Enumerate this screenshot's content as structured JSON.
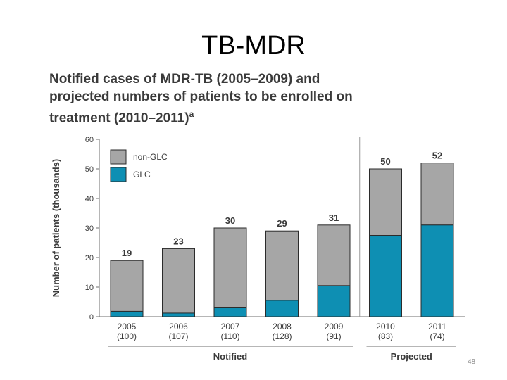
{
  "slide": {
    "title": "TB-MDR",
    "page_number": "48"
  },
  "chart_data": {
    "type": "bar",
    "title_lines": [
      "Notified cases of MDR-TB (2005–2009) and",
      "projected numbers of patients to be enrolled on",
      "treatment (2010–2011)"
    ],
    "title_superscript": "a",
    "ylabel": "Number of patients (thousands)",
    "ylim": [
      0,
      60
    ],
    "yticks": [
      "0",
      "10",
      "20",
      "30",
      "40",
      "50",
      "60"
    ],
    "categories": [
      "2005",
      "2006",
      "2007",
      "2008",
      "2009",
      "2010",
      "2011"
    ],
    "category_sublabels": [
      "(100)",
      "(107)",
      "(110)",
      "(128)",
      "(91)",
      "(83)",
      "(74)"
    ],
    "group_labels": [
      {
        "label": "Notified",
        "from": 0,
        "to": 4
      },
      {
        "label": "Projected",
        "from": 5,
        "to": 6
      }
    ],
    "legend_position": "top-left",
    "stacked": true,
    "series": [
      {
        "name": "GLC",
        "color": "#0e8fb3",
        "values": [
          1.8,
          1.2,
          3.2,
          5.5,
          10.5,
          27.5,
          31
        ]
      },
      {
        "name": "non-GLC",
        "color": "#a6a6a6",
        "values": [
          17.2,
          21.8,
          26.8,
          23.5,
          20.5,
          22.5,
          21
        ]
      }
    ],
    "totals": [
      "19",
      "23",
      "30",
      "29",
      "31",
      "50",
      "52"
    ]
  }
}
